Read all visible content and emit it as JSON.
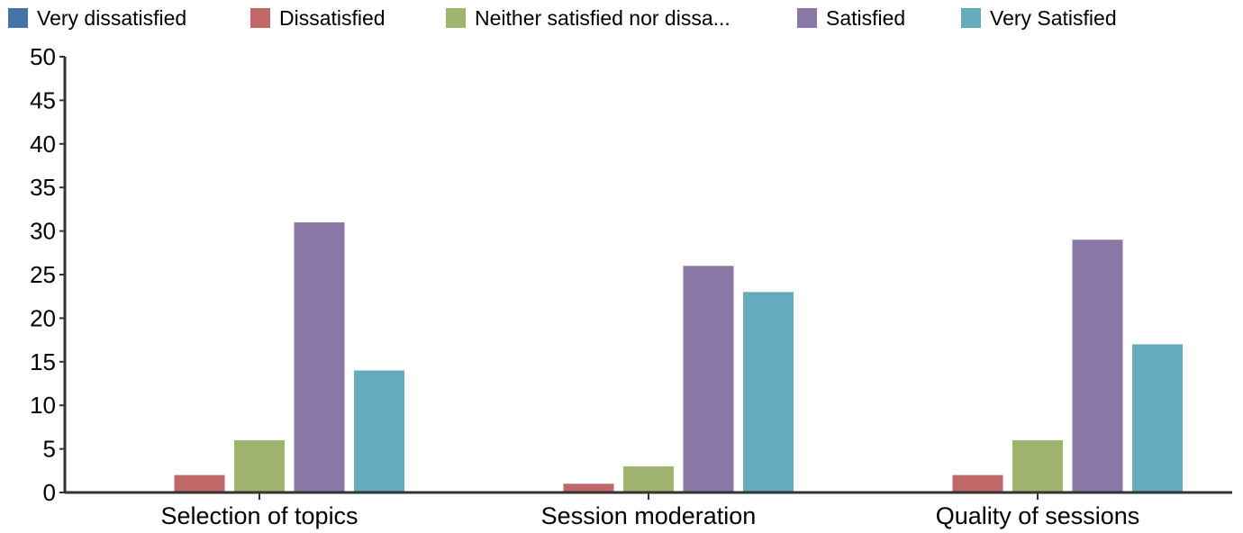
{
  "chart_data": {
    "type": "bar",
    "title": "",
    "xlabel": "",
    "ylabel": "",
    "ylim": [
      0,
      50
    ],
    "yticks": [
      0,
      5,
      10,
      15,
      20,
      25,
      30,
      35,
      40,
      45,
      50
    ],
    "grid": false,
    "legend_position": "top",
    "categories": [
      "Selection of topics",
      "Session moderation",
      "Quality of sessions"
    ],
    "series": [
      {
        "name": "Very dissatisfied",
        "color": "#4572a7",
        "values": [
          0,
          0,
          0
        ]
      },
      {
        "name": "Dissatisfied",
        "color": "#bf6866",
        "values": [
          2,
          1,
          2
        ]
      },
      {
        "name": "Neither satisfied nor dissa...",
        "color": "#9fb56f",
        "values": [
          6,
          3,
          6
        ]
      },
      {
        "name": "Satisfied",
        "color": "#8a78a6",
        "values": [
          31,
          26,
          29
        ]
      },
      {
        "name": "Very Satisfied",
        "color": "#64abbd",
        "values": [
          14,
          23,
          17
        ]
      }
    ]
  }
}
